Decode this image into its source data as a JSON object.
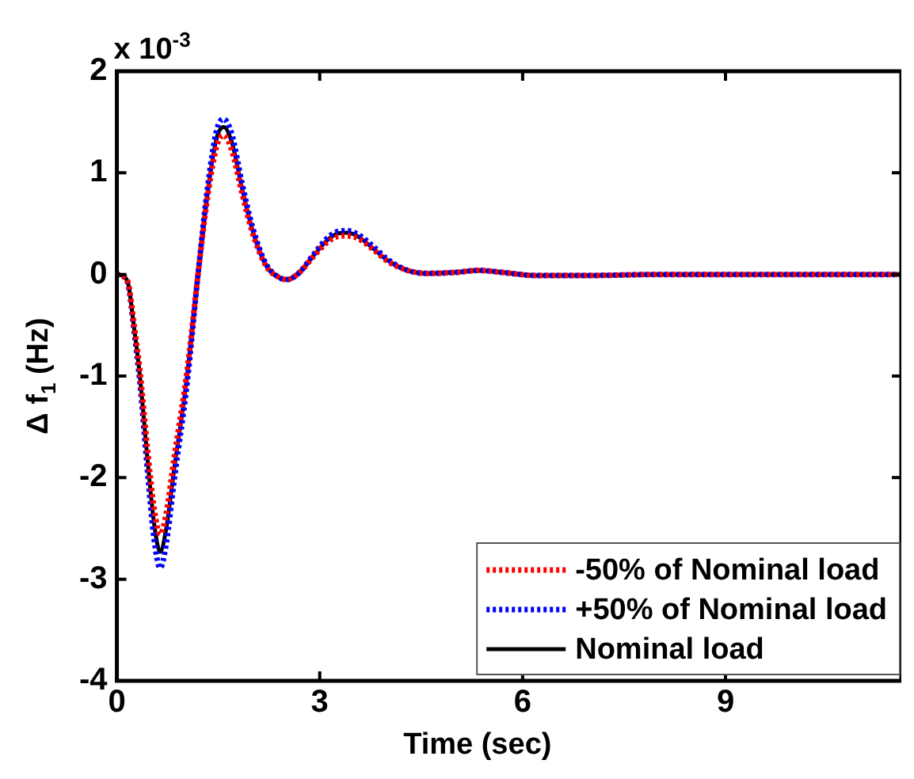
{
  "chart_data": {
    "type": "line",
    "xlabel": "Time (sec)",
    "ylabel": "Δ f$_{1}$ (Hz)",
    "annotations": [
      "x 10$^{-3}$"
    ],
    "xlim": [
      0,
      11.6
    ],
    "xticks": [
      0,
      3,
      6,
      9
    ],
    "ylim": [
      -4,
      2
    ],
    "yticks": [
      -4,
      -3,
      -2,
      -1,
      0,
      1,
      2
    ],
    "grid": false,
    "legend": "bottom right",
    "marker": "none",
    "x": [
      0,
      0.1,
      0.17,
      0.25,
      0.34,
      0.45,
      0.55,
      0.64,
      0.73,
      0.85,
      1.04,
      1.2,
      1.35,
      1.48,
      1.58,
      1.7,
      1.85,
      2.0,
      2.2,
      2.4,
      2.52,
      2.7,
      2.9,
      3.1,
      3.25,
      3.4,
      3.55,
      3.8,
      4.0,
      4.3,
      4.6,
      5.0,
      5.35,
      5.7,
      6.2,
      7,
      8,
      9,
      10,
      11.6
    ],
    "series": [
      {
        "name": "-50% of Nominal load",
        "color": "#ff0000",
        "line_style": "dotted",
        "values": [
          0,
          -0.02,
          -0.09,
          -0.47,
          -0.94,
          -1.7,
          -2.3,
          -2.56,
          -2.35,
          -1.79,
          -0.94,
          0,
          0.8,
          1.27,
          1.37,
          1.22,
          0.8,
          0.42,
          0.09,
          -0.03,
          -0.05,
          0.02,
          0.17,
          0.31,
          0.37,
          0.38,
          0.36,
          0.24,
          0.13,
          0.04,
          0.01,
          0.02,
          0.04,
          0.02,
          -0.01,
          -0.01,
          0,
          0,
          0,
          0
        ]
      },
      {
        "name": "+50% of Nominal load",
        "color": "#0000ff",
        "line_style": "dotted",
        "values": [
          0,
          -0.02,
          -0.11,
          -0.53,
          -1.06,
          -1.91,
          -2.6,
          -2.89,
          -2.65,
          -2.01,
          -1.06,
          0,
          0.9,
          1.43,
          1.53,
          1.38,
          0.9,
          0.48,
          0.11,
          -0.03,
          -0.05,
          0.02,
          0.19,
          0.35,
          0.42,
          0.43,
          0.4,
          0.27,
          0.15,
          0.04,
          0.01,
          0.02,
          0.04,
          0.02,
          -0.01,
          -0.01,
          0,
          0,
          0,
          0
        ]
      },
      {
        "name": "Nominal load",
        "color": "#000000",
        "line_style": "solid",
        "values": [
          0,
          -0.02,
          -0.1,
          -0.5,
          -1.0,
          -1.8,
          -2.45,
          -2.73,
          -2.5,
          -1.9,
          -1.0,
          0,
          0.85,
          1.35,
          1.45,
          1.3,
          0.85,
          0.45,
          0.1,
          -0.03,
          -0.05,
          0.02,
          0.18,
          0.33,
          0.4,
          0.41,
          0.38,
          0.25,
          0.14,
          0.04,
          0.01,
          0.02,
          0.04,
          0.02,
          -0.01,
          -0.01,
          0,
          0,
          0,
          0
        ]
      }
    ]
  }
}
